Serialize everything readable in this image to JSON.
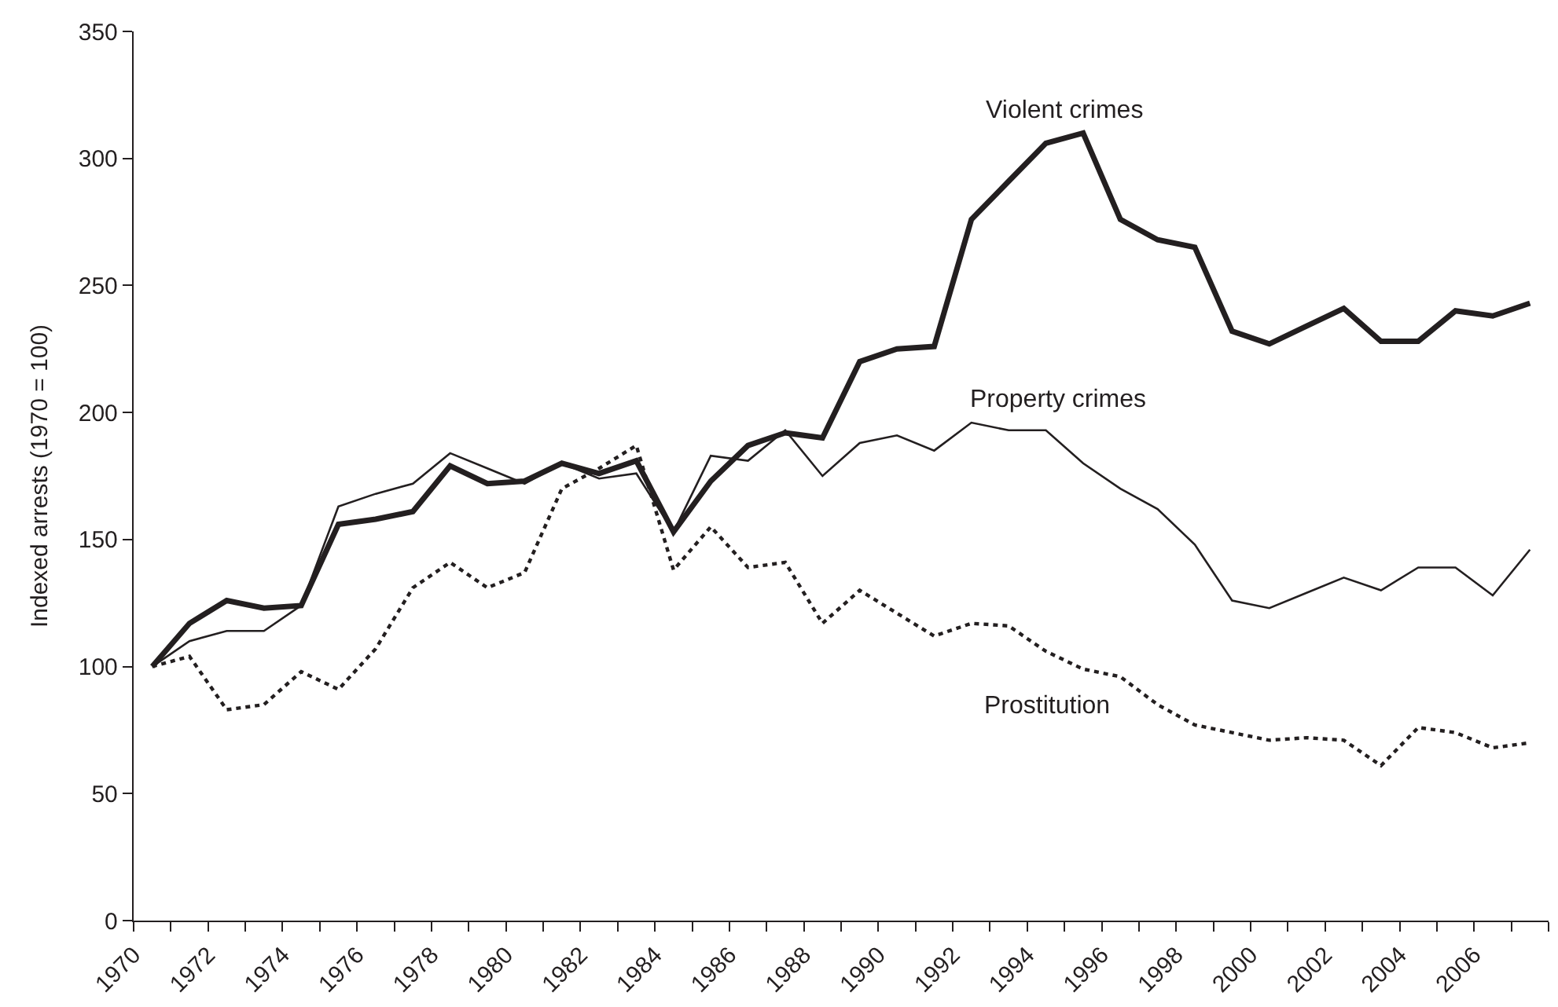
{
  "chart_data": {
    "type": "line",
    "ylabel": "Indexed arrests (1970 = 100)",
    "x": [
      1970.5,
      1971.5,
      1972.5,
      1973.5,
      1974.5,
      1975.5,
      1976.5,
      1977.5,
      1978.5,
      1979.5,
      1980.5,
      1981.5,
      1982.5,
      1983.5,
      1984.5,
      1985.5,
      1986.5,
      1987.5,
      1988.5,
      1989.5,
      1990.5,
      1991.5,
      1992.5,
      1993.5,
      1994.5,
      1995.5,
      1996.5,
      1997.5,
      1998.5,
      1999.5,
      2000.5,
      2001.5,
      2002.5,
      2003.5,
      2004.5,
      2005.5,
      2006.5,
      2007.5
    ],
    "series": [
      {
        "color": "#231f20",
        "line_style": "solid",
        "values": [
          100,
          117,
          126,
          123,
          124,
          156,
          158,
          161,
          179,
          172,
          173,
          180,
          176,
          181,
          153,
          173,
          187,
          192,
          190,
          220,
          225,
          226,
          276,
          291,
          306,
          310,
          276,
          268,
          265,
          232,
          227,
          234,
          241,
          228,
          228,
          240,
          238,
          243
        ]
      },
      {
        "color": "#231f20",
        "line_style": "solid",
        "values": [
          100,
          110,
          114,
          114,
          124,
          163,
          168,
          172,
          184,
          178,
          172,
          180,
          174,
          176,
          153,
          183,
          181,
          193,
          175,
          188,
          191,
          185,
          196,
          193,
          193,
          180,
          170,
          162,
          148,
          126,
          123,
          129,
          135,
          130,
          139,
          139,
          128,
          146
        ]
      },
      {
        "color": "#231f20",
        "line_style": "dotted",
        "values": [
          100,
          104,
          83,
          85,
          98,
          91,
          107,
          131,
          141,
          131,
          137,
          170,
          178,
          187,
          138,
          155,
          139,
          141,
          117,
          130,
          121,
          112,
          117,
          116,
          106,
          99,
          96,
          85,
          77,
          74,
          71,
          72,
          71,
          61,
          76,
          74,
          68,
          70
        ]
      }
    ],
    "xlim": [
      1970,
      2008
    ],
    "xticks": [
      1970,
      {
        "value": 1971,
        "label": null
      },
      1972,
      {
        "value": 1973,
        "label": null
      },
      1974,
      {
        "value": 1975,
        "label": null
      },
      1976,
      {
        "value": 1977,
        "label": null
      },
      1978,
      {
        "value": 1979,
        "label": null
      },
      1980,
      {
        "value": 1981,
        "label": null
      },
      1982,
      {
        "value": 1983,
        "label": null
      },
      1984,
      {
        "value": 1985,
        "label": null
      },
      1986,
      {
        "value": 1987,
        "label": null
      },
      1988,
      {
        "value": 1989,
        "label": null
      },
      1990,
      {
        "value": 1991,
        "label": null
      },
      1992,
      {
        "value": 1993,
        "label": null
      },
      1994,
      {
        "value": 1995,
        "label": null
      },
      1996,
      {
        "value": 1997,
        "label": null
      },
      1998,
      {
        "value": 1999,
        "label": null
      },
      2000,
      {
        "value": 2001,
        "label": null
      },
      2002,
      {
        "value": 2003,
        "label": null
      },
      2004,
      {
        "value": 2005,
        "label": null
      },
      2006,
      {
        "value": 2007,
        "label": null
      },
      {
        "value": 2008,
        "label": null
      }
    ],
    "ylim": [
      0,
      350
    ],
    "yticks": [
      0,
      50,
      100,
      150,
      200,
      250,
      300,
      350
    ],
    "annotations": [
      "Violent crimes",
      "Property crimes",
      "Prostitution"
    ]
  }
}
